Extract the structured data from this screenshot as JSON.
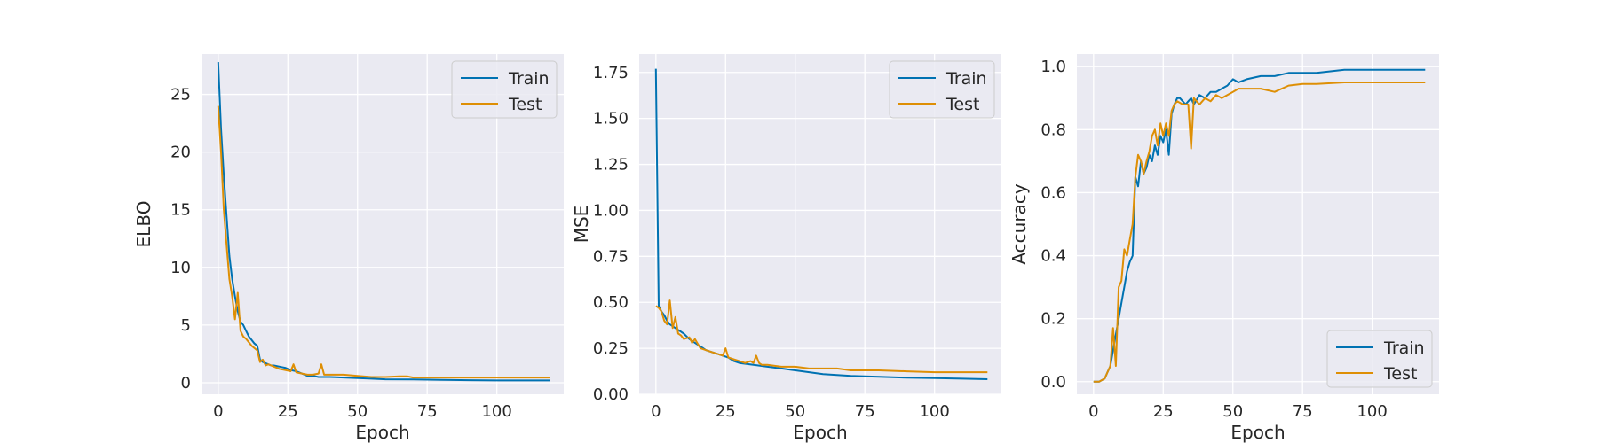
{
  "colors": {
    "train": "#0072b2",
    "test": "#de8f05",
    "plot_background": "#eaeaf2",
    "grid": "#ffffff"
  },
  "chart_data": [
    {
      "type": "line",
      "xlabel": "Epoch",
      "ylabel": "ELBO",
      "xlim": [
        -6,
        124
      ],
      "ylim": [
        -1,
        28.5
      ],
      "xticks": [
        0,
        25,
        50,
        75,
        100
      ],
      "yticks": [
        0,
        5,
        10,
        15,
        20,
        25
      ],
      "grid": true,
      "legend_position": "top-right",
      "series": [
        {
          "name": "Train",
          "x": [
            0,
            1,
            2,
            3,
            4,
            5,
            6,
            7,
            8,
            9,
            10,
            11,
            12,
            13,
            14,
            15,
            16,
            17,
            18,
            19,
            20,
            22,
            24,
            26,
            28,
            30,
            32,
            34,
            36,
            38,
            40,
            45,
            50,
            55,
            60,
            70,
            80,
            90,
            100,
            110,
            119
          ],
          "y": [
            27.8,
            22.0,
            18.0,
            14.5,
            11.0,
            9.0,
            7.5,
            6.2,
            5.3,
            5.0,
            4.5,
            4.0,
            3.7,
            3.4,
            3.2,
            2.0,
            1.8,
            1.7,
            1.6,
            1.5,
            1.5,
            1.4,
            1.3,
            1.1,
            1.0,
            0.8,
            0.6,
            0.6,
            0.5,
            0.5,
            0.5,
            0.45,
            0.4,
            0.35,
            0.3,
            0.28,
            0.25,
            0.22,
            0.2,
            0.2,
            0.2
          ]
        },
        {
          "name": "Test",
          "x": [
            0,
            1,
            2,
            3,
            4,
            5,
            6,
            7,
            8,
            9,
            10,
            11,
            12,
            13,
            14,
            15,
            16,
            17,
            18,
            20,
            22,
            24,
            26,
            27,
            28,
            30,
            32,
            34,
            36,
            37,
            38,
            40,
            42,
            45,
            50,
            55,
            60,
            65,
            68,
            70,
            80,
            90,
            100,
            110,
            119
          ],
          "y": [
            24.0,
            20.0,
            15.0,
            12.0,
            9.0,
            7.5,
            5.5,
            7.8,
            4.5,
            4.0,
            3.8,
            3.5,
            3.2,
            3.0,
            2.8,
            1.8,
            2.0,
            1.5,
            1.6,
            1.4,
            1.2,
            1.1,
            1.0,
            1.6,
            0.9,
            0.8,
            0.7,
            0.7,
            0.8,
            1.6,
            0.7,
            0.7,
            0.7,
            0.7,
            0.6,
            0.5,
            0.5,
            0.55,
            0.55,
            0.45,
            0.45,
            0.45,
            0.45,
            0.45,
            0.45
          ]
        }
      ]
    },
    {
      "type": "line",
      "xlabel": "Epoch",
      "ylabel": "MSE",
      "xlim": [
        -6,
        124
      ],
      "ylim": [
        0,
        1.85
      ],
      "xticks": [
        0,
        25,
        50,
        75,
        100
      ],
      "yticks": [
        0.0,
        0.25,
        0.5,
        0.75,
        1.0,
        1.25,
        1.5,
        1.75
      ],
      "ytick_labels": [
        "0.00",
        "0.25",
        "0.50",
        "0.75",
        "1.00",
        "1.25",
        "1.50",
        "1.75"
      ],
      "grid": true,
      "legend_position": "top-right",
      "series": [
        {
          "name": "Train",
          "x": [
            0,
            1,
            2,
            3,
            4,
            5,
            6,
            7,
            8,
            9,
            10,
            12,
            14,
            16,
            18,
            20,
            22,
            24,
            26,
            28,
            30,
            35,
            40,
            45,
            50,
            55,
            60,
            70,
            80,
            90,
            100,
            110,
            119
          ],
          "y": [
            1.77,
            0.48,
            0.45,
            0.43,
            0.4,
            0.38,
            0.37,
            0.36,
            0.35,
            0.34,
            0.33,
            0.3,
            0.28,
            0.26,
            0.24,
            0.23,
            0.22,
            0.21,
            0.2,
            0.18,
            0.17,
            0.16,
            0.15,
            0.14,
            0.13,
            0.12,
            0.11,
            0.1,
            0.095,
            0.09,
            0.088,
            0.085,
            0.082
          ]
        },
        {
          "name": "Test",
          "x": [
            0,
            1,
            2,
            3,
            4,
            5,
            6,
            7,
            8,
            9,
            10,
            12,
            13,
            14,
            16,
            18,
            20,
            22,
            24,
            25,
            26,
            28,
            30,
            32,
            34,
            35,
            36,
            37,
            38,
            40,
            45,
            50,
            55,
            60,
            65,
            70,
            75,
            80,
            90,
            100,
            110,
            119
          ],
          "y": [
            0.48,
            0.47,
            0.45,
            0.4,
            0.38,
            0.51,
            0.36,
            0.42,
            0.33,
            0.32,
            0.3,
            0.31,
            0.28,
            0.3,
            0.25,
            0.24,
            0.23,
            0.22,
            0.21,
            0.25,
            0.2,
            0.19,
            0.18,
            0.17,
            0.18,
            0.17,
            0.21,
            0.17,
            0.16,
            0.16,
            0.15,
            0.15,
            0.14,
            0.14,
            0.14,
            0.13,
            0.13,
            0.13,
            0.125,
            0.12,
            0.12,
            0.12
          ]
        }
      ]
    },
    {
      "type": "line",
      "xlabel": "Epoch",
      "ylabel": "Accuracy",
      "xlim": [
        -6,
        124
      ],
      "ylim": [
        -0.04,
        1.04
      ],
      "xticks": [
        0,
        25,
        50,
        75,
        100
      ],
      "yticks": [
        0.0,
        0.2,
        0.4,
        0.6,
        0.8,
        1.0
      ],
      "ytick_labels": [
        "0.0",
        "0.2",
        "0.4",
        "0.6",
        "0.8",
        "1.0"
      ],
      "grid": true,
      "legend_position": "bottom-right",
      "series": [
        {
          "name": "Train",
          "x": [
            0,
            2,
            4,
            5,
            6,
            7,
            8,
            9,
            10,
            11,
            12,
            13,
            14,
            15,
            16,
            17,
            18,
            19,
            20,
            21,
            22,
            23,
            24,
            25,
            26,
            27,
            28,
            29,
            30,
            31,
            32,
            33,
            34,
            35,
            36,
            38,
            40,
            42,
            44,
            46,
            48,
            50,
            52,
            55,
            60,
            65,
            70,
            75,
            80,
            90,
            100,
            110,
            119
          ],
          "y": [
            0.0,
            0.0,
            0.01,
            0.03,
            0.05,
            0.1,
            0.15,
            0.2,
            0.25,
            0.3,
            0.35,
            0.38,
            0.4,
            0.65,
            0.62,
            0.7,
            0.66,
            0.68,
            0.72,
            0.7,
            0.75,
            0.72,
            0.78,
            0.76,
            0.8,
            0.72,
            0.85,
            0.88,
            0.9,
            0.9,
            0.89,
            0.88,
            0.89,
            0.9,
            0.88,
            0.91,
            0.9,
            0.92,
            0.92,
            0.93,
            0.94,
            0.96,
            0.95,
            0.96,
            0.97,
            0.97,
            0.98,
            0.98,
            0.98,
            0.99,
            0.99,
            0.99,
            0.99
          ]
        },
        {
          "name": "Test",
          "x": [
            0,
            2,
            4,
            5,
            6,
            7,
            8,
            9,
            10,
            11,
            12,
            13,
            14,
            15,
            16,
            17,
            18,
            19,
            20,
            21,
            22,
            23,
            24,
            25,
            26,
            27,
            28,
            29,
            30,
            32,
            34,
            35,
            36,
            38,
            40,
            42,
            44,
            46,
            48,
            50,
            52,
            55,
            60,
            65,
            70,
            75,
            80,
            90,
            100,
            110,
            119
          ],
          "y": [
            0.0,
            0.0,
            0.01,
            0.03,
            0.05,
            0.17,
            0.05,
            0.3,
            0.32,
            0.42,
            0.4,
            0.45,
            0.5,
            0.65,
            0.72,
            0.7,
            0.66,
            0.7,
            0.73,
            0.78,
            0.8,
            0.75,
            0.82,
            0.78,
            0.82,
            0.78,
            0.86,
            0.88,
            0.89,
            0.88,
            0.88,
            0.74,
            0.9,
            0.88,
            0.9,
            0.89,
            0.91,
            0.9,
            0.91,
            0.92,
            0.93,
            0.93,
            0.93,
            0.92,
            0.94,
            0.945,
            0.945,
            0.95,
            0.95,
            0.95,
            0.95
          ]
        }
      ]
    }
  ]
}
